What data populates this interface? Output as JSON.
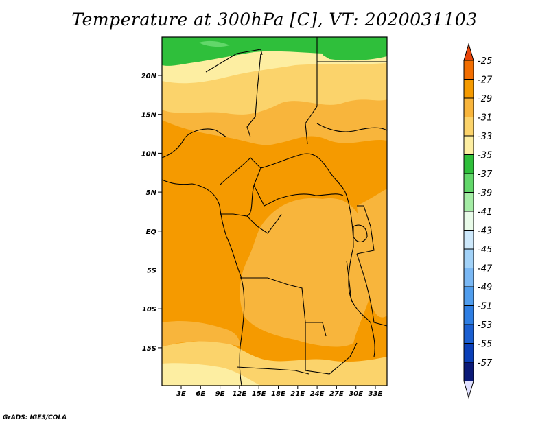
{
  "title": "Temperature at 300hPa [C], VT: 2020031103",
  "credit": "GrADS: IGES/COLA",
  "axes": {
    "lat_labels": [
      "20N",
      "15N",
      "10N",
      "5N",
      "EQ",
      "5S",
      "10S",
      "15S"
    ],
    "lon_labels": [
      "3E",
      "6E",
      "9E",
      "12E",
      "15E",
      "18E",
      "21E",
      "24E",
      "27E",
      "30E",
      "33E"
    ]
  },
  "colorbar": {
    "labels": [
      "-25",
      "-27",
      "-29",
      "-31",
      "-33",
      "-35",
      "-37",
      "-39",
      "-41",
      "-43",
      "-45",
      "-47",
      "-49",
      "-51",
      "-53",
      "-55",
      "-57"
    ],
    "colors": [
      "#e8450a",
      "#f26e00",
      "#f59a00",
      "#f8b53c",
      "#fbd36b",
      "#fdeea2",
      "#2fbf3b",
      "#62d76a",
      "#a4eca5",
      "#e9fbe9",
      "#cde8fb",
      "#a2d2f8",
      "#7ab8f4",
      "#509ded",
      "#2e7ee3",
      "#1b5fd1",
      "#0a3fb8",
      "#0b1a78",
      "#e0e0ff"
    ]
  },
  "map_fills": {
    "main_orange": "#f59a00",
    "lighter_orange": "#f8b53c",
    "yellow": "#fbd36b",
    "pale_yellow": "#fdeea2",
    "green": "#2fbf3b",
    "light_green": "#62d76a"
  }
}
